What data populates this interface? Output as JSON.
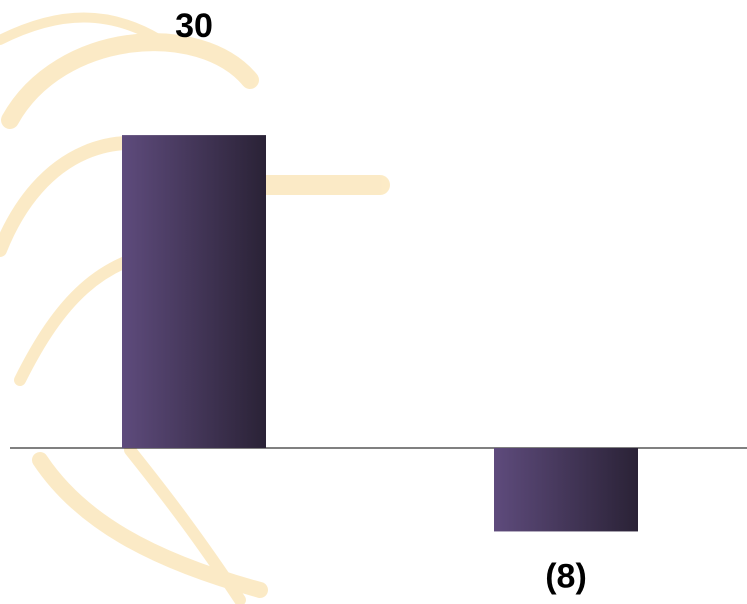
{
  "chart_data": {
    "type": "bar",
    "categories": [
      null,
      null
    ],
    "values": [
      30,
      -8
    ],
    "value_labels": [
      "30",
      "(8)"
    ],
    "color": "#5e4b7c"
  }
}
